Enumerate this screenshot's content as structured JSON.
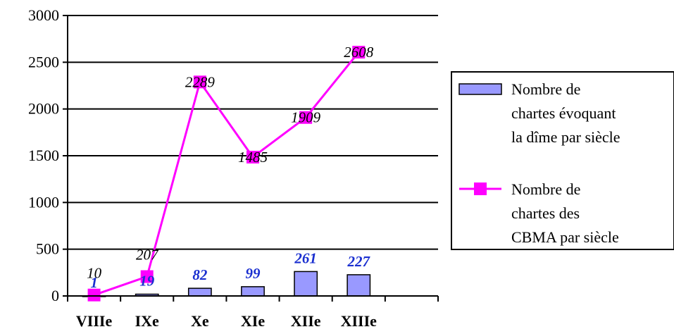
{
  "chart_data": {
    "type": "bar",
    "categories": [
      "VIIIe",
      "IXe",
      "Xe",
      "XIe",
      "XIIe",
      "XIIIe"
    ],
    "series": [
      {
        "name": "Nombre de chartes évoquant la dîme par siècle",
        "type": "bar",
        "values": [
          1,
          19,
          82,
          99,
          261,
          227
        ],
        "labels": [
          "1",
          "19",
          "82",
          "99",
          "261",
          "227"
        ],
        "color": "#9999ff"
      },
      {
        "name": "Nombre de chartes des CBMA par siècle",
        "type": "line",
        "values": [
          10,
          207,
          2289,
          1485,
          1909,
          2608
        ],
        "labels": [
          "10",
          "207",
          "2289",
          "1485",
          "1909",
          "2608"
        ],
        "color": "#ff00ff"
      }
    ],
    "ylim": [
      0,
      3000
    ],
    "yticks": [
      "0",
      "500",
      "1000",
      "1500",
      "2000",
      "2500",
      "3000"
    ],
    "grid": true,
    "legend": {
      "position": "right",
      "entries": [
        [
          "Nombre de",
          "chartes évoquant",
          "la dîme par siècle"
        ],
        [
          "Nombre de",
          "chartes des",
          "CBMA par siècle"
        ]
      ]
    }
  }
}
